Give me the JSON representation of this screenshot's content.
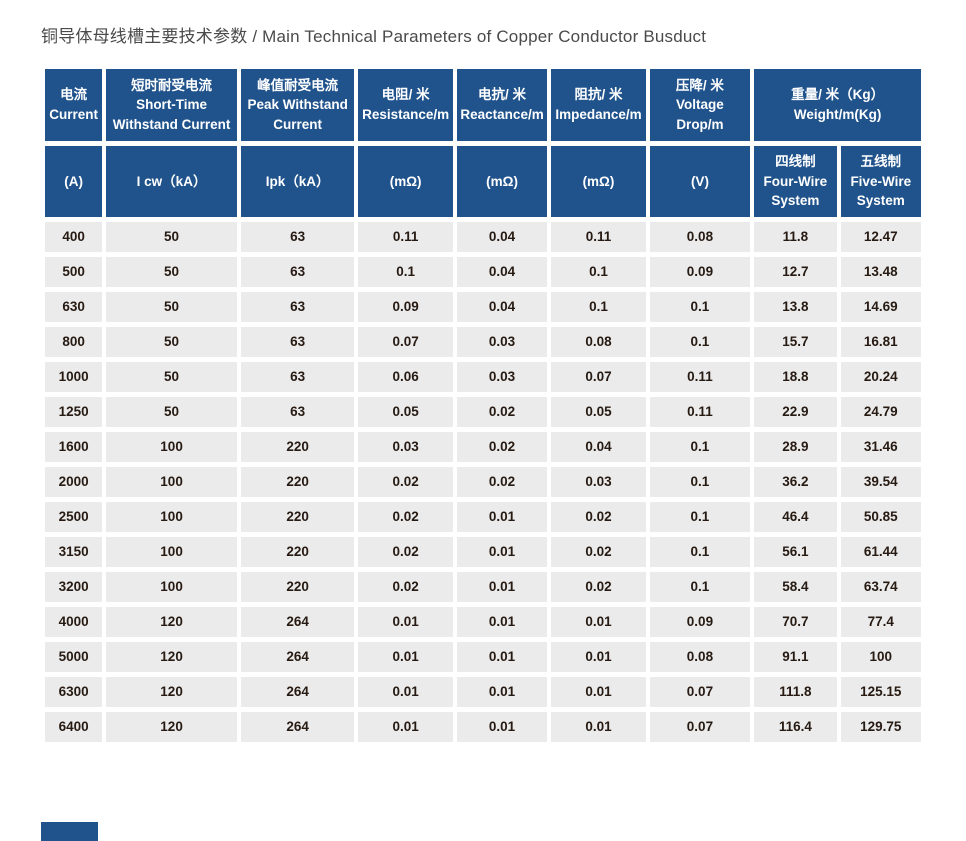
{
  "title": "铜导体母线槽主要技术参数 / Main Technical Parameters of Copper Conductor Busduct",
  "colors": {
    "header_bg": "#20538c",
    "header_text": "#ffffff",
    "cell_bg": "#ebebeb",
    "cell_text": "#261a12",
    "title_text": "#4a4a4a",
    "page_bg": "#ffffff"
  },
  "table": {
    "header_row1": [
      {
        "cn": "电流",
        "en": "Current"
      },
      {
        "cn": "短时耐受电流",
        "en": "Short-Time Withstand Current"
      },
      {
        "cn": "峰值耐受电流",
        "en": "Peak Withstand Current"
      },
      {
        "cn": "电阻/ 米",
        "en": "Resistance/m"
      },
      {
        "cn": "电抗/ 米",
        "en": "Reactance/m"
      },
      {
        "cn": "阻抗/ 米",
        "en": "Impedance/m"
      },
      {
        "cn": "压降/ 米",
        "en": "Voltage Drop/m"
      },
      {
        "cn": "重量/ 米（Kg）",
        "en": "Weight/m(Kg)"
      }
    ],
    "header_row2": [
      {
        "cn": "",
        "en": "(A)"
      },
      {
        "cn": "",
        "en": "I cw（kA）"
      },
      {
        "cn": "",
        "en": "Ipk（kA）"
      },
      {
        "cn": "",
        "en": "(mΩ)"
      },
      {
        "cn": "",
        "en": "(mΩ)"
      },
      {
        "cn": "",
        "en": "(mΩ)"
      },
      {
        "cn": "",
        "en": "(V)"
      },
      {
        "cn": "四线制",
        "en": "Four-Wire System"
      },
      {
        "cn": "五线制",
        "en": "Five-Wire System"
      }
    ]
  },
  "chart_data": {
    "type": "table",
    "title": "铜导体母线槽主要技术参数 / Main Technical Parameters of Copper Conductor Busduct",
    "columns": [
      "Current (A)",
      "I cw (kA)",
      "Ipk (kA)",
      "Resistance/m (mΩ)",
      "Reactance/m (mΩ)",
      "Impedance/m (mΩ)",
      "Voltage Drop/m (V)",
      "Weight/m Four-Wire System (Kg)",
      "Weight/m Five-Wire System (Kg)"
    ],
    "rows": [
      [
        "400",
        "50",
        "63",
        "0.11",
        "0.04",
        "0.11",
        "0.08",
        "11.8",
        "12.47"
      ],
      [
        "500",
        "50",
        "63",
        "0.1",
        "0.04",
        "0.1",
        "0.09",
        "12.7",
        "13.48"
      ],
      [
        "630",
        "50",
        "63",
        "0.09",
        "0.04",
        "0.1",
        "0.1",
        "13.8",
        "14.69"
      ],
      [
        "800",
        "50",
        "63",
        "0.07",
        "0.03",
        "0.08",
        "0.1",
        "15.7",
        "16.81"
      ],
      [
        "1000",
        "50",
        "63",
        "0.06",
        "0.03",
        "0.07",
        "0.11",
        "18.8",
        "20.24"
      ],
      [
        "1250",
        "50",
        "63",
        "0.05",
        "0.02",
        "0.05",
        "0.11",
        "22.9",
        "24.79"
      ],
      [
        "1600",
        "100",
        "220",
        "0.03",
        "0.02",
        "0.04",
        "0.1",
        "28.9",
        "31.46"
      ],
      [
        "2000",
        "100",
        "220",
        "0.02",
        "0.02",
        "0.03",
        "0.1",
        "36.2",
        "39.54"
      ],
      [
        "2500",
        "100",
        "220",
        "0.02",
        "0.01",
        "0.02",
        "0.1",
        "46.4",
        "50.85"
      ],
      [
        "3150",
        "100",
        "220",
        "0.02",
        "0.01",
        "0.02",
        "0.1",
        "56.1",
        "61.44"
      ],
      [
        "3200",
        "100",
        "220",
        "0.02",
        "0.01",
        "0.02",
        "0.1",
        "58.4",
        "63.74"
      ],
      [
        "4000",
        "120",
        "264",
        "0.01",
        "0.01",
        "0.01",
        "0.09",
        "70.7",
        "77.4"
      ],
      [
        "5000",
        "120",
        "264",
        "0.01",
        "0.01",
        "0.01",
        "0.08",
        "91.1",
        "100"
      ],
      [
        "6300",
        "120",
        "264",
        "0.01",
        "0.01",
        "0.01",
        "0.07",
        "111.8",
        "125.15"
      ],
      [
        "6400",
        "120",
        "264",
        "0.01",
        "0.01",
        "0.01",
        "0.07",
        "116.4",
        "129.75"
      ]
    ]
  }
}
